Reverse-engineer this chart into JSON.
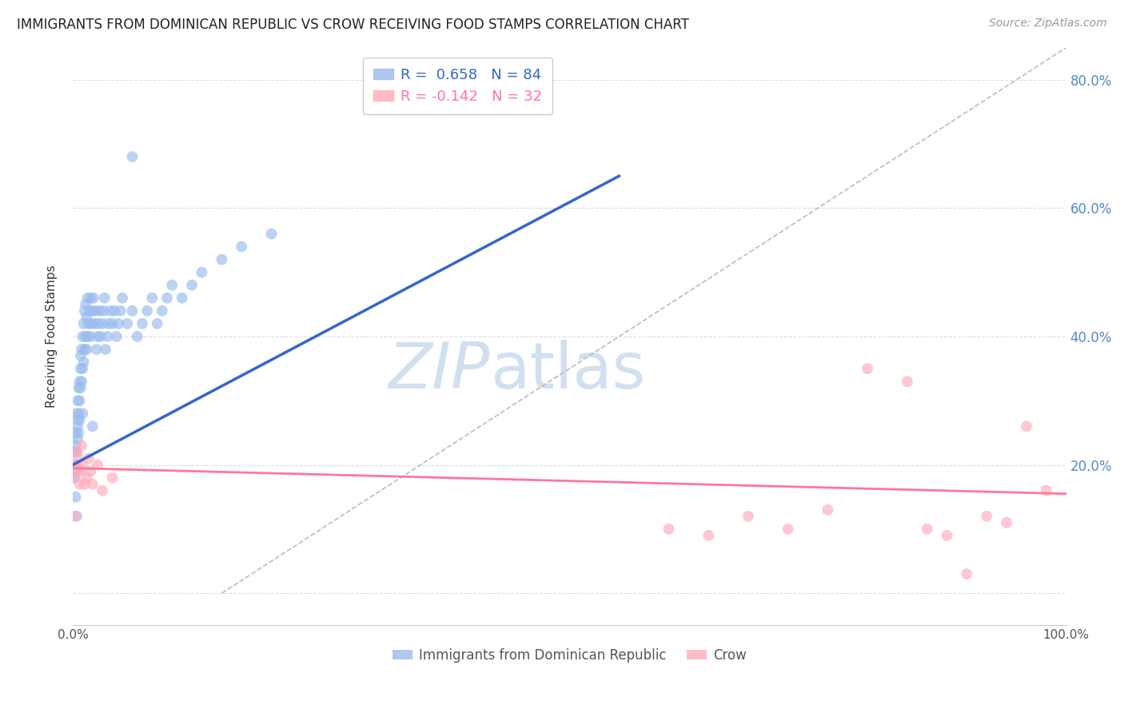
{
  "title": "IMMIGRANTS FROM DOMINICAN REPUBLIC VS CROW RECEIVING FOOD STAMPS CORRELATION CHART",
  "source": "Source: ZipAtlas.com",
  "ylabel": "Receiving Food Stamps",
  "blue_R": 0.658,
  "blue_N": 84,
  "pink_R": -0.142,
  "pink_N": 32,
  "legend_label_blue": "Immigrants from Dominican Republic",
  "legend_label_pink": "Crow",
  "blue_color": "#99bbee",
  "pink_color": "#ffaabb",
  "blue_line_color": "#3366cc",
  "pink_line_color": "#ff7799",
  "watermark_zip": "ZIP",
  "watermark_atlas": "atlas",
  "background_color": "#ffffff",
  "grid_color": "#dddddd",
  "right_axis_color": "#5588cc",
  "title_fontsize": 12,
  "blue_x": [
    0.001,
    0.002,
    0.002,
    0.003,
    0.003,
    0.003,
    0.004,
    0.004,
    0.004,
    0.005,
    0.005,
    0.005,
    0.005,
    0.006,
    0.006,
    0.006,
    0.007,
    0.007,
    0.007,
    0.008,
    0.008,
    0.008,
    0.009,
    0.009,
    0.01,
    0.01,
    0.01,
    0.011,
    0.011,
    0.012,
    0.012,
    0.013,
    0.013,
    0.014,
    0.014,
    0.015,
    0.015,
    0.016,
    0.017,
    0.018,
    0.018,
    0.019,
    0.02,
    0.021,
    0.022,
    0.023,
    0.024,
    0.025,
    0.026,
    0.027,
    0.028,
    0.03,
    0.031,
    0.032,
    0.033,
    0.035,
    0.036,
    0.038,
    0.04,
    0.042,
    0.044,
    0.046,
    0.048,
    0.05,
    0.055,
    0.06,
    0.065,
    0.07,
    0.075,
    0.08,
    0.085,
    0.09,
    0.095,
    0.1,
    0.11,
    0.12,
    0.13,
    0.15,
    0.17,
    0.2,
    0.003,
    0.004,
    0.02,
    0.06
  ],
  "blue_y": [
    0.2,
    0.18,
    0.22,
    0.19,
    0.23,
    0.25,
    0.2,
    0.22,
    0.28,
    0.24,
    0.26,
    0.27,
    0.3,
    0.28,
    0.32,
    0.25,
    0.3,
    0.33,
    0.27,
    0.35,
    0.32,
    0.37,
    0.33,
    0.38,
    0.35,
    0.4,
    0.28,
    0.36,
    0.42,
    0.38,
    0.44,
    0.4,
    0.45,
    0.38,
    0.43,
    0.4,
    0.46,
    0.42,
    0.44,
    0.46,
    0.4,
    0.42,
    0.44,
    0.46,
    0.42,
    0.44,
    0.38,
    0.4,
    0.42,
    0.44,
    0.4,
    0.42,
    0.44,
    0.46,
    0.38,
    0.4,
    0.42,
    0.44,
    0.42,
    0.44,
    0.4,
    0.42,
    0.44,
    0.46,
    0.42,
    0.44,
    0.4,
    0.42,
    0.44,
    0.46,
    0.42,
    0.44,
    0.46,
    0.48,
    0.46,
    0.48,
    0.5,
    0.52,
    0.54,
    0.56,
    0.15,
    0.12,
    0.26,
    0.68
  ],
  "pink_x": [
    0.001,
    0.002,
    0.003,
    0.004,
    0.005,
    0.006,
    0.007,
    0.008,
    0.009,
    0.01,
    0.012,
    0.014,
    0.016,
    0.018,
    0.02,
    0.025,
    0.03,
    0.04,
    0.6,
    0.64,
    0.68,
    0.72,
    0.76,
    0.8,
    0.84,
    0.86,
    0.88,
    0.9,
    0.92,
    0.94,
    0.96,
    0.98
  ],
  "pink_y": [
    0.18,
    0.12,
    0.2,
    0.22,
    0.19,
    0.21,
    0.17,
    0.19,
    0.23,
    0.2,
    0.17,
    0.18,
    0.21,
    0.19,
    0.17,
    0.2,
    0.16,
    0.18,
    0.1,
    0.09,
    0.12,
    0.1,
    0.13,
    0.35,
    0.33,
    0.1,
    0.09,
    0.03,
    0.12,
    0.11,
    0.26,
    0.16
  ],
  "xlim": [
    0,
    1.0
  ],
  "ylim": [
    -0.05,
    0.85
  ],
  "blue_line_x0": 0.0,
  "blue_line_y0": 0.2,
  "blue_line_x1": 0.55,
  "blue_line_y1": 0.65,
  "pink_line_x0": 0.0,
  "pink_line_y0": 0.195,
  "pink_line_x1": 1.0,
  "pink_line_y1": 0.155
}
